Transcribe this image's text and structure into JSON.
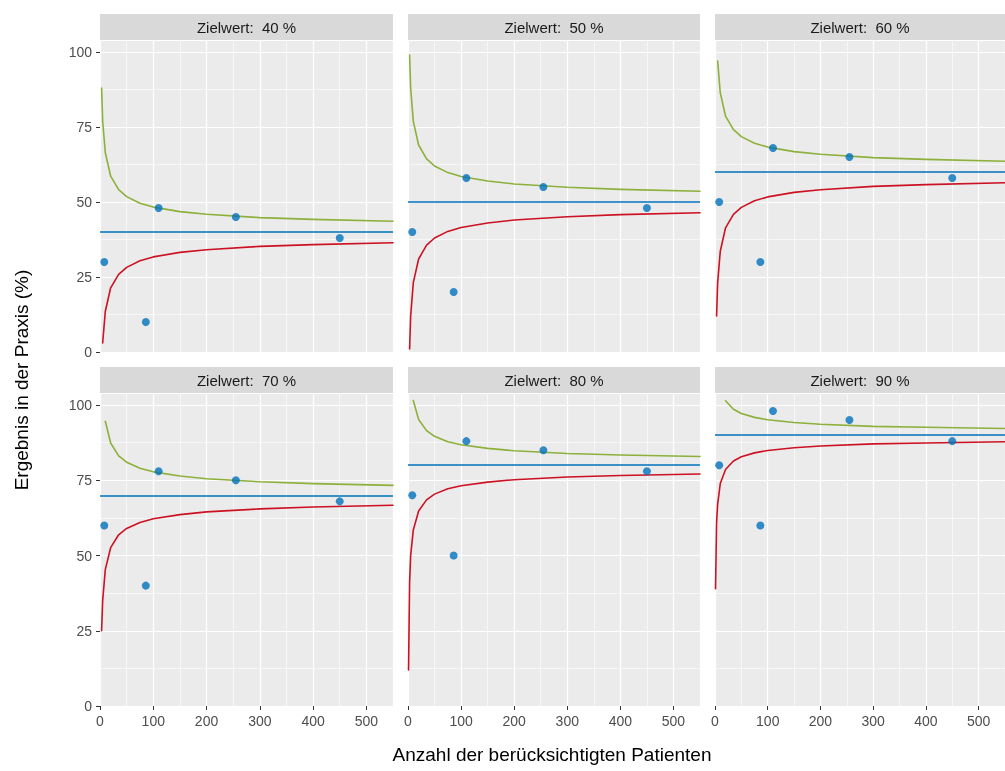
{
  "chart_data": [
    {
      "type": "scatter",
      "title": "Zielwert:  40 %",
      "ylabel": "Ergebnis in der Praxis (%)",
      "xlim": [
        0,
        550
      ],
      "ylim": [
        0,
        104
      ],
      "xticks": [
        0,
        100,
        200,
        300,
        400,
        500
      ],
      "yticks": [
        0,
        25,
        50,
        75,
        100
      ],
      "grid": true,
      "tick_labels": "y",
      "line_style": "solid",
      "ref_lines": [
        {
          "axis": "y",
          "value": 40,
          "color": "#0072bd"
        }
      ],
      "series": [
        {
          "marker": "circle",
          "color": "#0072bd",
          "x": [
            8,
            86,
            110,
            255,
            450
          ],
          "values": [
            30,
            10,
            48,
            45,
            38
          ]
        },
        {
          "type": "line",
          "color": "#8cb03a",
          "x": [
            3,
            5,
            10,
            20,
            35,
            50,
            75,
            100,
            150,
            200,
            300,
            400,
            550
          ],
          "values": [
            88,
            77,
            66.4,
            58.6,
            54.1,
            51.8,
            49.6,
            48.3,
            46.8,
            45.9,
            44.8,
            44.2,
            43.6
          ]
        },
        {
          "type": "line",
          "color": "#cc1122",
          "x": [
            5,
            10,
            20,
            35,
            50,
            75,
            100,
            150,
            200,
            300,
            400,
            550
          ],
          "values": [
            3,
            13.6,
            21.4,
            25.9,
            28.2,
            30.4,
            31.7,
            33.2,
            34.1,
            35.2,
            35.8,
            36.4
          ]
        }
      ]
    },
    {
      "type": "scatter",
      "title": "Zielwert:  50 %",
      "xlim": [
        0,
        550
      ],
      "ylim": [
        0,
        104
      ],
      "xticks": [
        0,
        100,
        200,
        300,
        400,
        500
      ],
      "yticks": [
        0,
        25,
        50,
        75,
        100
      ],
      "grid": true,
      "tick_labels": false,
      "line_style": "solid",
      "ref_lines": [
        {
          "axis": "y",
          "value": 50,
          "color": "#0072bd"
        }
      ],
      "series": [
        {
          "marker": "circle",
          "color": "#0072bd",
          "x": [
            8,
            86,
            110,
            255,
            450
          ],
          "values": [
            40,
            20,
            58,
            55,
            48
          ]
        },
        {
          "type": "line",
          "color": "#8cb03a",
          "x": [
            3,
            5,
            10,
            20,
            35,
            50,
            75,
            100,
            150,
            200,
            300,
            400,
            550
          ],
          "values": [
            99,
            88,
            76.9,
            69,
            64.4,
            62,
            59.8,
            58.5,
            57,
            56,
            54.9,
            54.2,
            53.6
          ]
        },
        {
          "type": "line",
          "color": "#cc1122",
          "x": [
            3,
            5,
            10,
            20,
            35,
            50,
            75,
            100,
            150,
            200,
            300,
            400,
            550
          ],
          "values": [
            1,
            12,
            23.1,
            31,
            35.6,
            38,
            40.2,
            41.5,
            43,
            44,
            45.1,
            45.8,
            46.4
          ]
        }
      ]
    },
    {
      "type": "scatter",
      "title": "Zielwert:  60 %",
      "xlim": [
        0,
        550
      ],
      "ylim": [
        0,
        104
      ],
      "xticks": [
        0,
        100,
        200,
        300,
        400,
        500
      ],
      "yticks": [
        0,
        25,
        50,
        75,
        100
      ],
      "grid": true,
      "tick_labels": false,
      "line_style": "solid",
      "ref_lines": [
        {
          "axis": "y",
          "value": 60,
          "color": "#0072bd"
        }
      ],
      "series": [
        {
          "marker": "circle",
          "color": "#0072bd",
          "x": [
            8,
            86,
            110,
            255,
            450
          ],
          "values": [
            50,
            30,
            68,
            65,
            58
          ]
        },
        {
          "type": "line",
          "color": "#8cb03a",
          "x": [
            5,
            10,
            20,
            35,
            50,
            75,
            100,
            150,
            200,
            300,
            400,
            550
          ],
          "values": [
            97,
            86.4,
            78.6,
            74.1,
            71.8,
            69.6,
            68.3,
            66.8,
            65.9,
            64.8,
            64.2,
            63.6
          ]
        },
        {
          "type": "line",
          "color": "#cc1122",
          "x": [
            3,
            5,
            10,
            20,
            35,
            50,
            75,
            100,
            150,
            200,
            300,
            400,
            550
          ],
          "values": [
            12,
            23,
            33.6,
            41.4,
            45.9,
            48.2,
            50.4,
            51.7,
            53.2,
            54.1,
            55.2,
            55.8,
            56.4
          ]
        }
      ]
    },
    {
      "type": "scatter",
      "title": "Zielwert:  70 %",
      "xlim": [
        0,
        550
      ],
      "ylim": [
        0,
        104
      ],
      "xticks": [
        0,
        100,
        200,
        300,
        400,
        500
      ],
      "yticks": [
        0,
        25,
        50,
        75,
        100
      ],
      "grid": true,
      "line_style": "solid",
      "ref_lines": [
        {
          "axis": "y",
          "value": 70,
          "color": "#0072bd"
        }
      ],
      "series": [
        {
          "marker": "circle",
          "color": "#0072bd",
          "x": [
            8,
            86,
            110,
            255,
            450
          ],
          "values": [
            60,
            40,
            78,
            75,
            68
          ]
        },
        {
          "type": "line",
          "color": "#8cb03a",
          "x": [
            10,
            20,
            35,
            50,
            75,
            100,
            150,
            200,
            300,
            400,
            550
          ],
          "values": [
            94.6,
            87.4,
            83.1,
            81,
            79,
            77.8,
            76.4,
            75.5,
            74.5,
            73.9,
            73.3
          ]
        },
        {
          "type": "line",
          "color": "#cc1122",
          "x": [
            3,
            5,
            10,
            20,
            35,
            50,
            75,
            100,
            150,
            200,
            300,
            400,
            550
          ],
          "values": [
            25,
            35,
            45.4,
            52.6,
            56.9,
            59,
            61,
            62.2,
            63.6,
            64.5,
            65.5,
            66.1,
            66.7
          ]
        }
      ]
    },
    {
      "type": "scatter",
      "title": "Zielwert:  80 %",
      "xlabel": "Anzahl der berücksichtigten Patienten",
      "xlim": [
        0,
        550
      ],
      "ylim": [
        0,
        104
      ],
      "xticks": [
        0,
        100,
        200,
        300,
        400,
        500
      ],
      "yticks": [
        0,
        25,
        50,
        75,
        100
      ],
      "grid": true,
      "tick_labels": "x",
      "line_style": "solid",
      "ref_lines": [
        {
          "axis": "y",
          "value": 80,
          "color": "#0072bd"
        }
      ],
      "series": [
        {
          "marker": "circle",
          "color": "#0072bd",
          "x": [
            8,
            86,
            110,
            255,
            450
          ],
          "values": [
            70,
            50,
            88,
            85,
            78
          ]
        },
        {
          "type": "line",
          "color": "#8cb03a",
          "x": [
            10,
            20,
            35,
            50,
            75,
            100,
            150,
            200,
            300,
            400,
            550
          ],
          "values": [
            101.5,
            95.2,
            91.5,
            89.6,
            87.8,
            86.8,
            85.6,
            84.8,
            83.9,
            83.4,
            82.9
          ]
        },
        {
          "type": "line",
          "color": "#cc1122",
          "x": [
            1,
            3,
            5,
            10,
            20,
            35,
            50,
            75,
            100,
            150,
            200,
            300,
            400,
            550
          ],
          "values": [
            12,
            41,
            50,
            58.5,
            64.8,
            68.5,
            70.4,
            72.2,
            73.2,
            74.4,
            75.2,
            76.1,
            76.6,
            77.1
          ]
        }
      ]
    },
    {
      "type": "scatter",
      "title": "Zielwert:  90 %",
      "xlim": [
        0,
        550
      ],
      "ylim": [
        0,
        104
      ],
      "xticks": [
        0,
        100,
        200,
        300,
        400,
        500
      ],
      "yticks": [
        0,
        25,
        50,
        75,
        100
      ],
      "grid": true,
      "tick_labels": "x",
      "line_style": "solid",
      "ref_lines": [
        {
          "axis": "y",
          "value": 90,
          "color": "#0072bd"
        }
      ],
      "series": [
        {
          "marker": "circle",
          "color": "#0072bd",
          "x": [
            8,
            86,
            110,
            255,
            450
          ],
          "values": [
            80,
            60,
            98,
            95,
            88
          ]
        },
        {
          "type": "line",
          "color": "#8cb03a",
          "x": [
            20,
            35,
            50,
            75,
            100,
            150,
            200,
            300,
            400,
            550
          ],
          "values": [
            101.4,
            98.6,
            97.2,
            95.9,
            95.1,
            94.2,
            93.6,
            92.9,
            92.6,
            92.2
          ]
        },
        {
          "type": "line",
          "color": "#cc1122",
          "x": [
            1,
            3,
            5,
            10,
            20,
            35,
            50,
            75,
            100,
            150,
            200,
            300,
            400,
            550
          ],
          "values": [
            39,
            61,
            67,
            73.9,
            78.6,
            81.4,
            82.8,
            84.1,
            84.9,
            85.8,
            86.4,
            87.1,
            87.4,
            87.8
          ]
        }
      ]
    }
  ]
}
